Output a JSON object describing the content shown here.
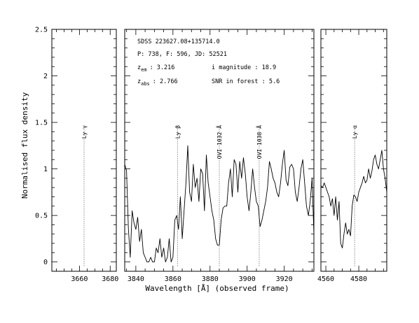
{
  "chart_data": {
    "type": "line",
    "ylabel": "Normalised flux density",
    "xlabel": "Wavelength [Å] (observed frame)",
    "ylim": [
      -0.1,
      2.5
    ],
    "yticks": [
      "0",
      "0.5",
      "1",
      "1.5",
      "2",
      "2.5"
    ],
    "info": {
      "object": "SDSS 223627.08+135714.0",
      "plate": "P: 738, F: 596, JD: 52521",
      "zem_label": "z",
      "zem_sub": "em",
      "zem_value": ": 3.216",
      "zabs_label": "z",
      "zabs_sub": "abs",
      "zabs_value": ": 2.766",
      "imag": "i magnitude : 18.9",
      "snr": "SNR in forest : 5.6"
    },
    "panels": [
      {
        "name": "ly-gamma",
        "xlim": [
          3642,
          3684
        ],
        "xticks": [
          {
            "v": 3660,
            "label": "3660"
          },
          {
            "v": 3680,
            "label": "3680"
          }
        ],
        "lines": [
          {
            "x": 3663,
            "label": "Ly γ"
          }
        ],
        "series": [
          {
            "x": [],
            "y": []
          }
        ]
      },
      {
        "name": "ly-beta-ovi",
        "xlim": [
          3834,
          3936
        ],
        "xticks": [
          {
            "v": 3840,
            "label": "3840"
          },
          {
            "v": 3860,
            "label": "3860"
          },
          {
            "v": 3880,
            "label": "3880"
          },
          {
            "v": 3900,
            "label": "3900"
          },
          {
            "v": 3920,
            "label": "3920"
          }
        ],
        "lines": [
          {
            "x": 3862.5,
            "label": "Ly β"
          },
          {
            "x": 3885.0,
            "label": "OVI 1032 Å"
          },
          {
            "x": 3906.5,
            "label": "OVI 1038 Å"
          }
        ],
        "series": [
          {
            "x": [
              3834,
              3835,
              3836,
              3837,
              3838,
              3839,
              3840,
              3841,
              3842,
              3843,
              3844,
              3845,
              3846,
              3847,
              3848,
              3849,
              3850,
              3851,
              3852,
              3853,
              3854,
              3855,
              3856,
              3857,
              3858,
              3859,
              3860,
              3861,
              3862,
              3863,
              3864,
              3865,
              3866,
              3867,
              3868,
              3869,
              3870,
              3871,
              3872,
              3873,
              3874,
              3875,
              3876,
              3877,
              3878,
              3879,
              3880,
              3881,
              3882,
              3883,
              3884,
              3885,
              3886,
              3887,
              3888,
              3889,
              3890,
              3891,
              3892,
              3893,
              3894,
              3895,
              3896,
              3897,
              3898,
              3899,
              3900,
              3901,
              3902,
              3903,
              3904,
              3905,
              3906,
              3907,
              3908,
              3909,
              3910,
              3911,
              3912,
              3913,
              3914,
              3915,
              3916,
              3917,
              3918,
              3919,
              3920,
              3921,
              3922,
              3923,
              3924,
              3925,
              3926,
              3927,
              3928,
              3929,
              3930,
              3931,
              3932,
              3933,
              3934,
              3935,
              3936
            ],
            "y": [
              1.05,
              0.98,
              0.35,
              0.05,
              0.55,
              0.42,
              0.35,
              0.48,
              0.22,
              0.35,
              0.1,
              0.05,
              0.0,
              0.0,
              0.05,
              0.0,
              0.0,
              0.15,
              0.1,
              0.25,
              0.05,
              0.15,
              0.0,
              0.05,
              0.25,
              0.0,
              0.05,
              0.45,
              0.5,
              0.35,
              0.7,
              0.25,
              0.55,
              0.85,
              1.25,
              0.75,
              0.65,
              1.05,
              0.8,
              0.9,
              0.65,
              1.0,
              0.95,
              0.55,
              1.15,
              0.85,
              0.7,
              0.55,
              0.45,
              0.25,
              0.18,
              0.18,
              0.45,
              0.58,
              0.6,
              0.6,
              0.85,
              1.0,
              0.7,
              1.1,
              1.05,
              0.75,
              1.08,
              0.9,
              1.12,
              0.95,
              0.7,
              0.55,
              0.75,
              1.0,
              0.8,
              0.65,
              0.6,
              0.38,
              0.45,
              0.55,
              0.65,
              0.8,
              1.08,
              1.0,
              0.9,
              0.85,
              0.75,
              0.7,
              0.85,
              1.05,
              1.2,
              0.88,
              0.82,
              1.02,
              1.05,
              1.0,
              0.75,
              0.65,
              0.8,
              1.0,
              1.1,
              0.85,
              0.6,
              0.5,
              0.65,
              0.9,
              0.3
            ]
          }
        ]
      },
      {
        "name": "ly-alpha",
        "xlim": [
          4557,
          4597
        ],
        "xticks": [
          {
            "v": 4560,
            "label": "4560"
          },
          {
            "v": 4580,
            "label": "4580"
          }
        ],
        "lines": [
          {
            "x": 4577.5,
            "label": "Ly α"
          }
        ],
        "series": [
          {
            "x": [
              4557,
              4558,
              4559,
              4560,
              4561,
              4562,
              4563,
              4564,
              4565,
              4566,
              4567,
              4568,
              4569,
              4570,
              4571,
              4572,
              4573,
              4574,
              4575,
              4576,
              4577,
              4578,
              4579,
              4580,
              4581,
              4582,
              4583,
              4584,
              4585,
              4586,
              4587,
              4588,
              4589,
              4590,
              4591,
              4592,
              4593,
              4594,
              4595,
              4596,
              4597
            ],
            "y": [
              0.82,
              0.8,
              0.85,
              0.8,
              0.75,
              0.7,
              0.6,
              0.68,
              0.5,
              0.7,
              0.45,
              0.65,
              0.2,
              0.15,
              0.3,
              0.42,
              0.3,
              0.35,
              0.28,
              0.6,
              0.72,
              0.7,
              0.65,
              0.75,
              0.8,
              0.85,
              0.92,
              0.85,
              0.88,
              1.0,
              0.9,
              0.98,
              1.1,
              1.15,
              1.05,
              1.0,
              1.1,
              1.2,
              1.0,
              0.9,
              0.75
            ]
          }
        ]
      }
    ]
  }
}
